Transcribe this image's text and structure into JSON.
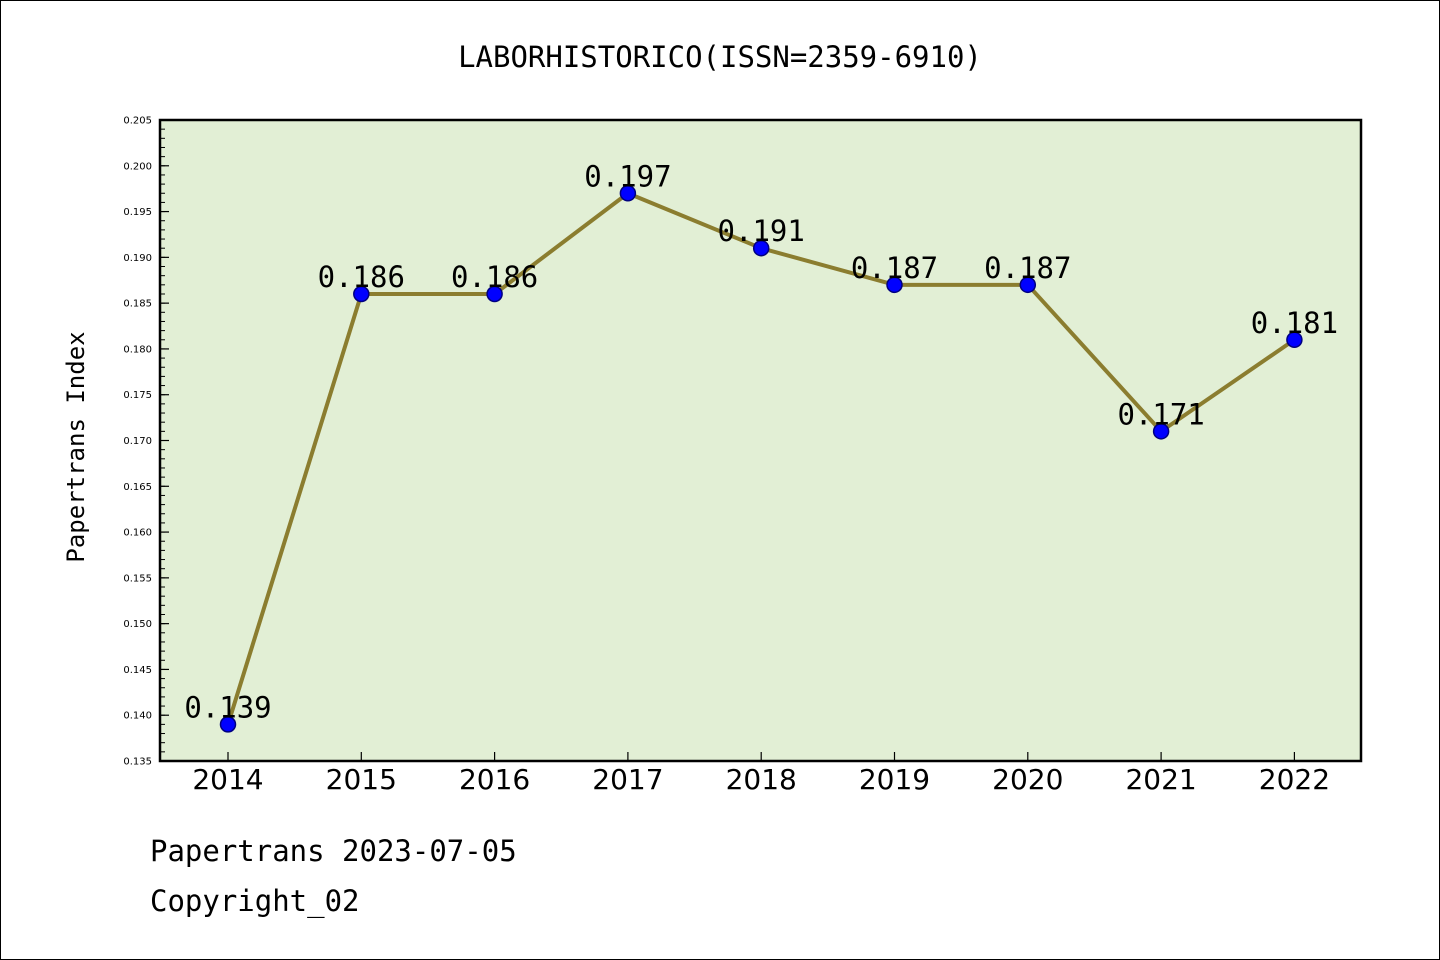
{
  "chart_data": {
    "type": "line",
    "title": "LABORHISTORICO(ISSN=2359-6910)",
    "xlabel": "",
    "ylabel": "Papertrans Index",
    "categories": [
      "2014",
      "2015",
      "2016",
      "2017",
      "2018",
      "2019",
      "2020",
      "2021",
      "2022"
    ],
    "series": [
      {
        "values": [
          0.139,
          0.186,
          0.186,
          0.197,
          0.191,
          0.187,
          0.187,
          0.171,
          0.181
        ],
        "data_labels": [
          "0.139",
          "0.186",
          "0.186",
          "0.197",
          "0.191",
          "0.187",
          "0.187",
          "0.171",
          "0.181"
        ]
      }
    ],
    "ylim": [
      0.135,
      0.205
    ],
    "yticks": [
      "0.135",
      "0.140",
      "0.145",
      "0.150",
      "0.155",
      "0.160",
      "0.165",
      "0.170",
      "0.175",
      "0.180",
      "0.185",
      "0.190",
      "0.195",
      "0.200",
      "0.205"
    ],
    "grid": false,
    "legend": "none",
    "colors": {
      "plot_background": "#e2efd5",
      "line": "#8b7d2f",
      "marker_fill": "#0000ff",
      "marker_edge": "#000080"
    }
  },
  "footer": {
    "line1": "Papertrans 2023-07-05",
    "line2": "Copyright_02"
  }
}
